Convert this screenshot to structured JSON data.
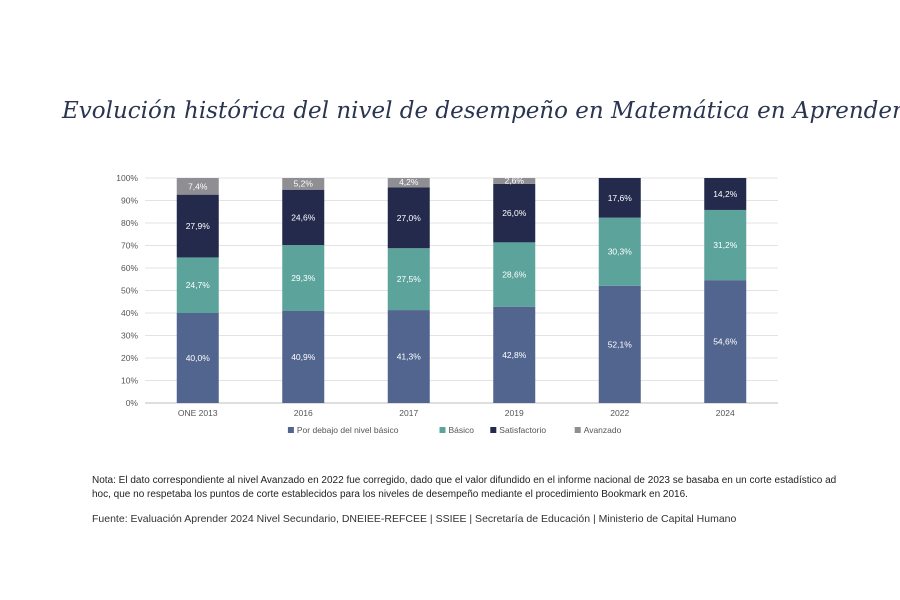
{
  "title": "Evolución histórica del nivel de desempeño en Matemática en Aprender",
  "chart_data": {
    "type": "bar",
    "stacked": true,
    "categories": [
      "ONE 2013",
      "2016",
      "2017",
      "2019",
      "2022",
      "2024"
    ],
    "series": [
      {
        "name": "Por debajo del nivel básico",
        "color": "#52658f",
        "values": [
          40.0,
          40.9,
          41.3,
          42.8,
          52.1,
          54.6
        ],
        "labels": [
          "40,0%",
          "40,9%",
          "41,3%",
          "42,8%",
          "52,1%",
          "54,6%"
        ]
      },
      {
        "name": "Básico",
        "color": "#5ba39b",
        "values": [
          24.7,
          29.3,
          27.5,
          28.6,
          30.3,
          31.2
        ],
        "labels": [
          "24,7%",
          "29,3%",
          "27,5%",
          "28,6%",
          "30,3%",
          "31,2%"
        ]
      },
      {
        "name": "Satisfactorio",
        "color": "#232a4c",
        "values": [
          27.9,
          24.6,
          27.0,
          26.0,
          17.6,
          14.2
        ],
        "labels": [
          "27,9%",
          "24,6%",
          "27,0%",
          "26,0%",
          "17,6%",
          "14,2%"
        ]
      },
      {
        "name": "Avanzado",
        "color": "#8e8e93",
        "values": [
          7.4,
          5.2,
          4.2,
          2.6,
          0,
          0
        ],
        "labels": [
          "7,4%",
          "5,2%",
          "4,2%",
          "2,6%",
          "",
          ""
        ]
      }
    ],
    "y_ticks": [
      "0%",
      "10%",
      "20%",
      "30%",
      "40%",
      "50%",
      "60%",
      "70%",
      "80%",
      "90%",
      "100%"
    ],
    "ylim": [
      0,
      100
    ],
    "grid": true,
    "legend": "bottom"
  },
  "note": "Nota: El dato correspondiente al nivel Avanzado en 2022 fue corregido, dado que el valor difundido en el informe nacional de 2023 se basaba en un corte estadístico ad hoc, que no respetaba los puntos de corte establecidos para los niveles de desempeño mediante el procedimiento Bookmark en 2016.",
  "source": "Fuente: Evaluación Aprender 2024 Nivel Secundario, DNEIEE-REFCEE | SSIEE | Secretaría de Educación | Ministerio de Capital Humano"
}
